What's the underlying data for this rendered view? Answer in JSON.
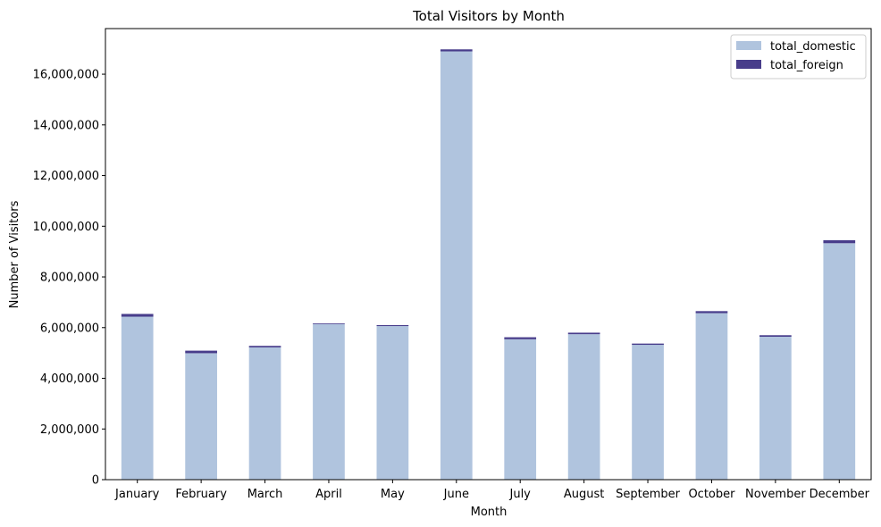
{
  "chart_data": {
    "type": "bar",
    "stacked": true,
    "title": "Total Visitors by Month",
    "xlabel": "Month",
    "ylabel": "Number of Visitors",
    "ylim": [
      0,
      17800000
    ],
    "yticks": [
      0,
      2000000,
      4000000,
      6000000,
      8000000,
      10000000,
      12000000,
      14000000,
      16000000
    ],
    "ytick_labels": [
      "0",
      "2,000,000",
      "4,000,000",
      "6,000,000",
      "8,000,000",
      "10,000,000",
      "12,000,000",
      "14,000,000",
      "16,000,000"
    ],
    "categories": [
      "January",
      "February",
      "March",
      "April",
      "May",
      "June",
      "July",
      "August",
      "September",
      "October",
      "November",
      "December"
    ],
    "series": [
      {
        "name": "total_domestic",
        "color": "#b0c4de",
        "values": [
          6430000,
          4990000,
          5220000,
          6140000,
          6060000,
          16900000,
          5540000,
          5740000,
          5320000,
          6570000,
          5640000,
          9330000
        ]
      },
      {
        "name": "total_foreign",
        "color": "#483d8b",
        "values": [
          110000,
          100000,
          60000,
          30000,
          40000,
          80000,
          80000,
          60000,
          50000,
          80000,
          60000,
          120000
        ]
      }
    ],
    "grid": false,
    "legend_position": "top-right"
  }
}
